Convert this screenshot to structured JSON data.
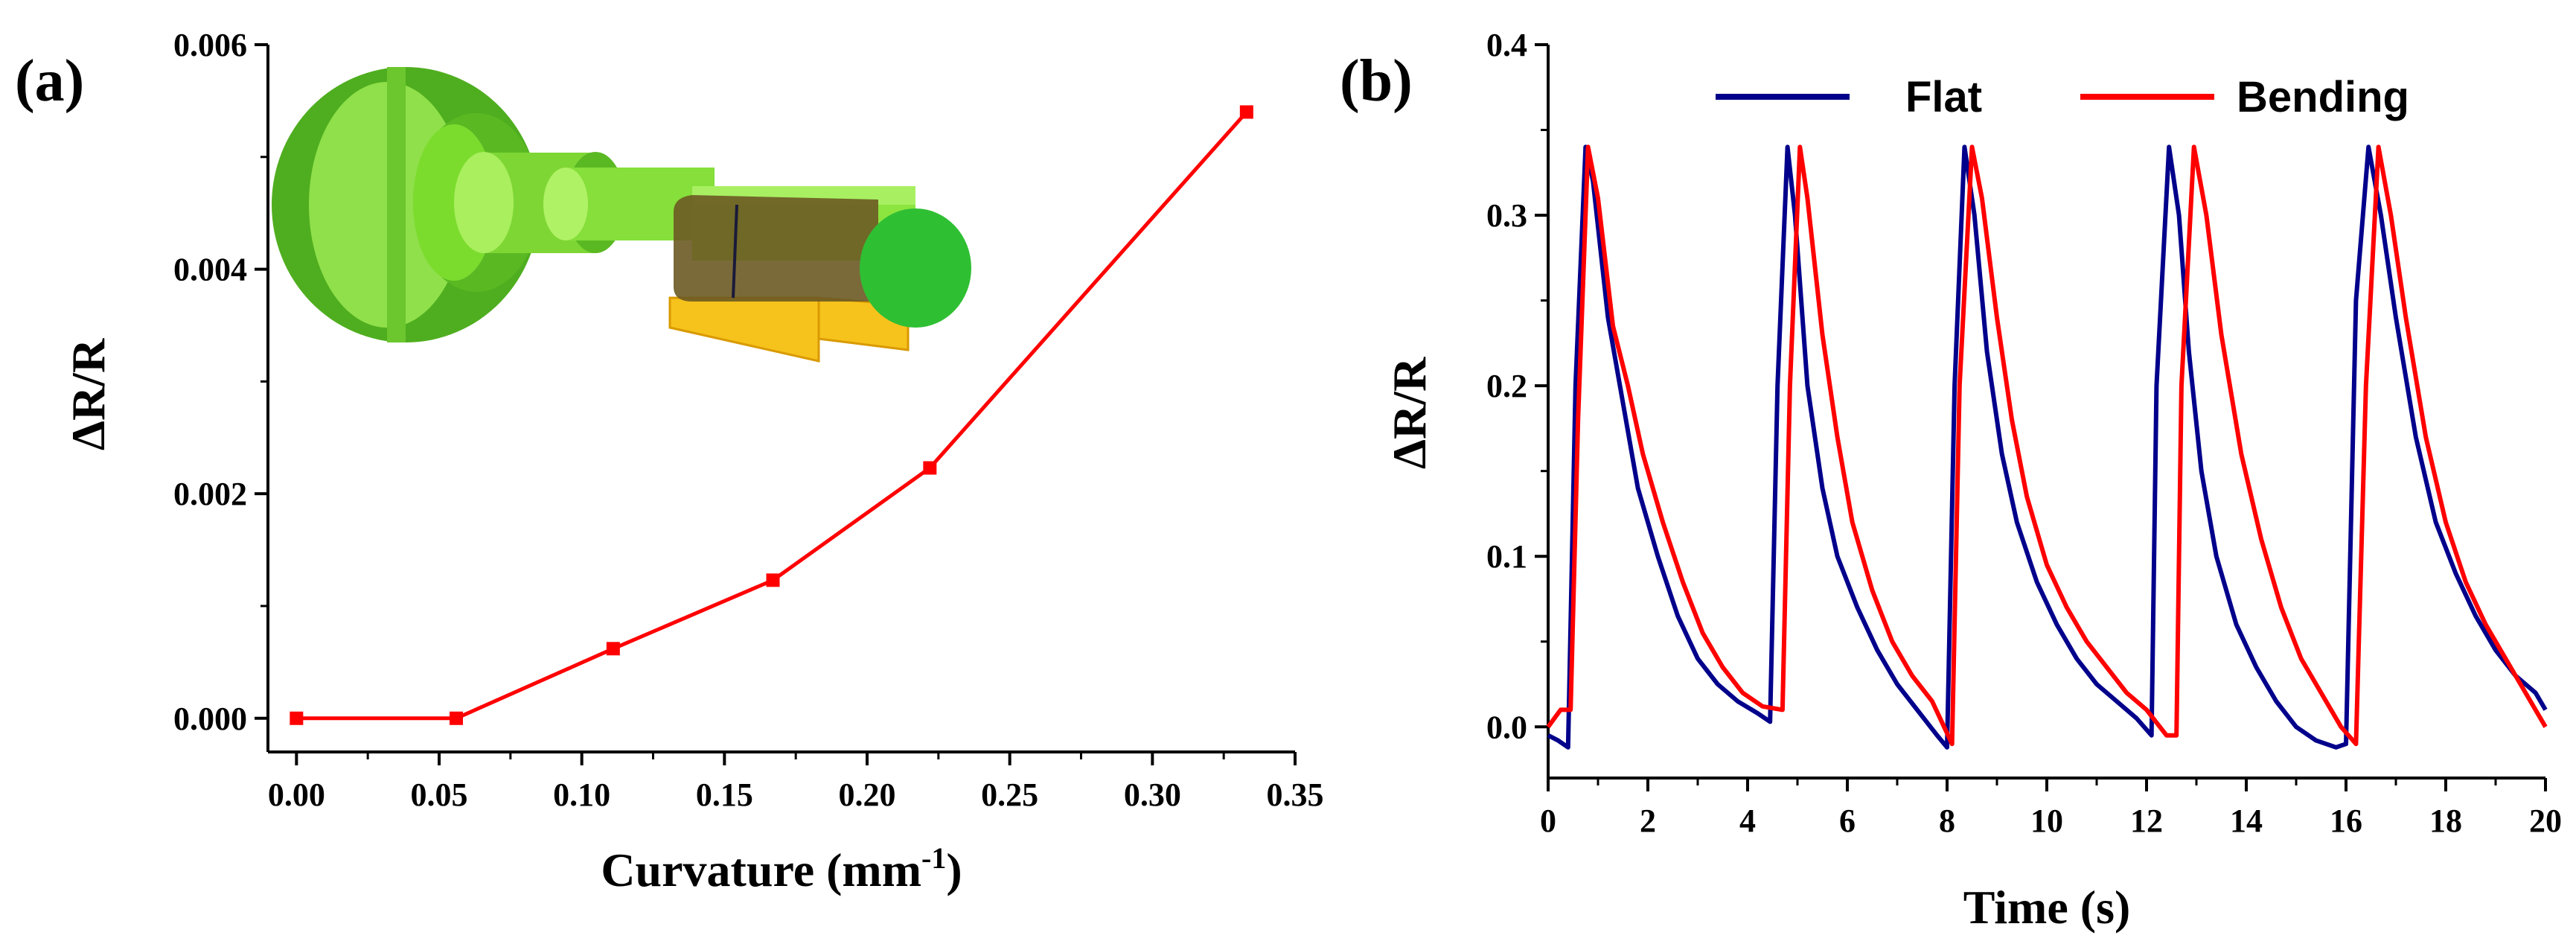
{
  "chart_data": [
    {
      "panel": "(a)",
      "type": "line",
      "xlabel": "Curvature (mm",
      "xlabel_sup": "-1",
      "xlabel_close": ")",
      "ylabel": "ΔR/R",
      "xlim": [
        -0.01,
        0.35
      ],
      "ylim": [
        -0.0003,
        0.006
      ],
      "xticks": [
        0.0,
        0.05,
        0.1,
        0.15,
        0.2,
        0.25,
        0.3,
        0.35
      ],
      "xtick_labels": [
        "0.00",
        "0.05",
        "0.10",
        "0.15",
        "0.20",
        "0.25",
        "0.30",
        "0.35"
      ],
      "yticks": [
        0.0,
        0.002,
        0.004,
        0.006
      ],
      "ytick_labels": [
        "0.000",
        "0.002",
        "0.004",
        "0.006"
      ],
      "series": [
        {
          "name": "ΔR/R",
          "color": "#ff0000",
          "marker": "square",
          "x": [
            0.0,
            0.056,
            0.111,
            0.167,
            0.222,
            0.333
          ],
          "y": [
            0.0,
            0.0,
            0.00062,
            0.00123,
            0.00223,
            0.0054
          ]
        }
      ],
      "inset": "green stepped shaft (bending fixture) with yellow flexible sensor wrapped around it"
    },
    {
      "panel": "(b)",
      "type": "line",
      "xlabel": "Time (s)",
      "ylabel": "ΔR/R",
      "xlim": [
        0,
        20
      ],
      "ylim": [
        -0.03,
        0.4
      ],
      "xticks": [
        0,
        2,
        4,
        6,
        8,
        10,
        12,
        14,
        16,
        18,
        20
      ],
      "xtick_labels": [
        "0",
        "2",
        "4",
        "6",
        "8",
        "10",
        "12",
        "14",
        "16",
        "18",
        "20"
      ],
      "yticks": [
        0.0,
        0.1,
        0.2,
        0.3,
        0.4
      ],
      "ytick_labels": [
        "0.0",
        "0.1",
        "0.2",
        "0.3",
        "0.4"
      ],
      "legend": {
        "position": "top",
        "entries": [
          "Flat",
          "Bending"
        ]
      },
      "series": [
        {
          "name": "Flat",
          "color": "#00008b",
          "x": [
            0,
            0.2,
            0.4,
            0.55,
            0.75,
            0.9,
            1.2,
            1.5,
            1.8,
            2.2,
            2.6,
            3.0,
            3.4,
            3.8,
            4.2,
            4.45,
            4.6,
            4.8,
            4.95,
            5.2,
            5.5,
            5.8,
            6.2,
            6.6,
            7.0,
            7.4,
            7.8,
            8.0,
            8.15,
            8.35,
            8.55,
            8.8,
            9.1,
            9.4,
            9.8,
            10.2,
            10.6,
            11.0,
            11.4,
            11.8,
            12.1,
            12.2,
            12.45,
            12.65,
            12.85,
            13.1,
            13.4,
            13.8,
            14.2,
            14.6,
            15.0,
            15.4,
            15.8,
            16.0,
            16.2,
            16.45,
            16.7,
            17.0,
            17.4,
            17.8,
            18.2,
            18.6,
            19.0,
            19.4,
            19.8,
            20.0
          ],
          "y": [
            -0.005,
            -0.008,
            -0.012,
            0.2,
            0.34,
            0.32,
            0.24,
            0.19,
            0.14,
            0.1,
            0.065,
            0.04,
            0.025,
            0.015,
            0.008,
            0.003,
            0.2,
            0.34,
            0.3,
            0.2,
            0.14,
            0.1,
            0.07,
            0.045,
            0.025,
            0.01,
            -0.005,
            -0.012,
            0.2,
            0.34,
            0.3,
            0.22,
            0.16,
            0.12,
            0.085,
            0.06,
            0.04,
            0.025,
            0.015,
            0.005,
            -0.005,
            0.2,
            0.34,
            0.3,
            0.22,
            0.15,
            0.1,
            0.06,
            0.035,
            0.015,
            0.0,
            -0.008,
            -0.012,
            -0.01,
            0.25,
            0.34,
            0.3,
            0.24,
            0.17,
            0.12,
            0.09,
            0.065,
            0.045,
            0.03,
            0.02,
            0.01
          ]
        },
        {
          "name": "Bending",
          "color": "#ff0000",
          "x": [
            0,
            0.25,
            0.45,
            0.6,
            0.8,
            1.0,
            1.3,
            1.6,
            1.9,
            2.3,
            2.7,
            3.1,
            3.5,
            3.9,
            4.3,
            4.7,
            4.85,
            5.05,
            5.2,
            5.5,
            5.8,
            6.1,
            6.5,
            6.9,
            7.3,
            7.7,
            8.1,
            8.25,
            8.5,
            8.7,
            9.0,
            9.3,
            9.6,
            10.0,
            10.4,
            10.8,
            11.2,
            11.6,
            12.0,
            12.4,
            12.6,
            12.7,
            12.95,
            13.2,
            13.5,
            13.9,
            14.3,
            14.7,
            15.1,
            15.5,
            15.9,
            16.2,
            16.4,
            16.65,
            16.9,
            17.2,
            17.6,
            18.0,
            18.4,
            18.8,
            19.2,
            19.6,
            20.0
          ],
          "y": [
            0.0,
            0.01,
            0.01,
            0.18,
            0.34,
            0.31,
            0.235,
            0.2,
            0.16,
            0.12,
            0.085,
            0.055,
            0.035,
            0.02,
            0.012,
            0.01,
            0.2,
            0.34,
            0.31,
            0.23,
            0.17,
            0.12,
            0.08,
            0.05,
            0.03,
            0.015,
            -0.01,
            0.2,
            0.34,
            0.31,
            0.24,
            0.18,
            0.135,
            0.095,
            0.07,
            0.05,
            0.035,
            0.02,
            0.01,
            -0.005,
            -0.005,
            0.2,
            0.34,
            0.3,
            0.23,
            0.16,
            0.11,
            0.07,
            0.04,
            0.02,
            0.0,
            -0.01,
            0.2,
            0.34,
            0.3,
            0.24,
            0.17,
            0.12,
            0.085,
            0.06,
            0.04,
            0.02,
            0.0
          ]
        }
      ]
    }
  ]
}
